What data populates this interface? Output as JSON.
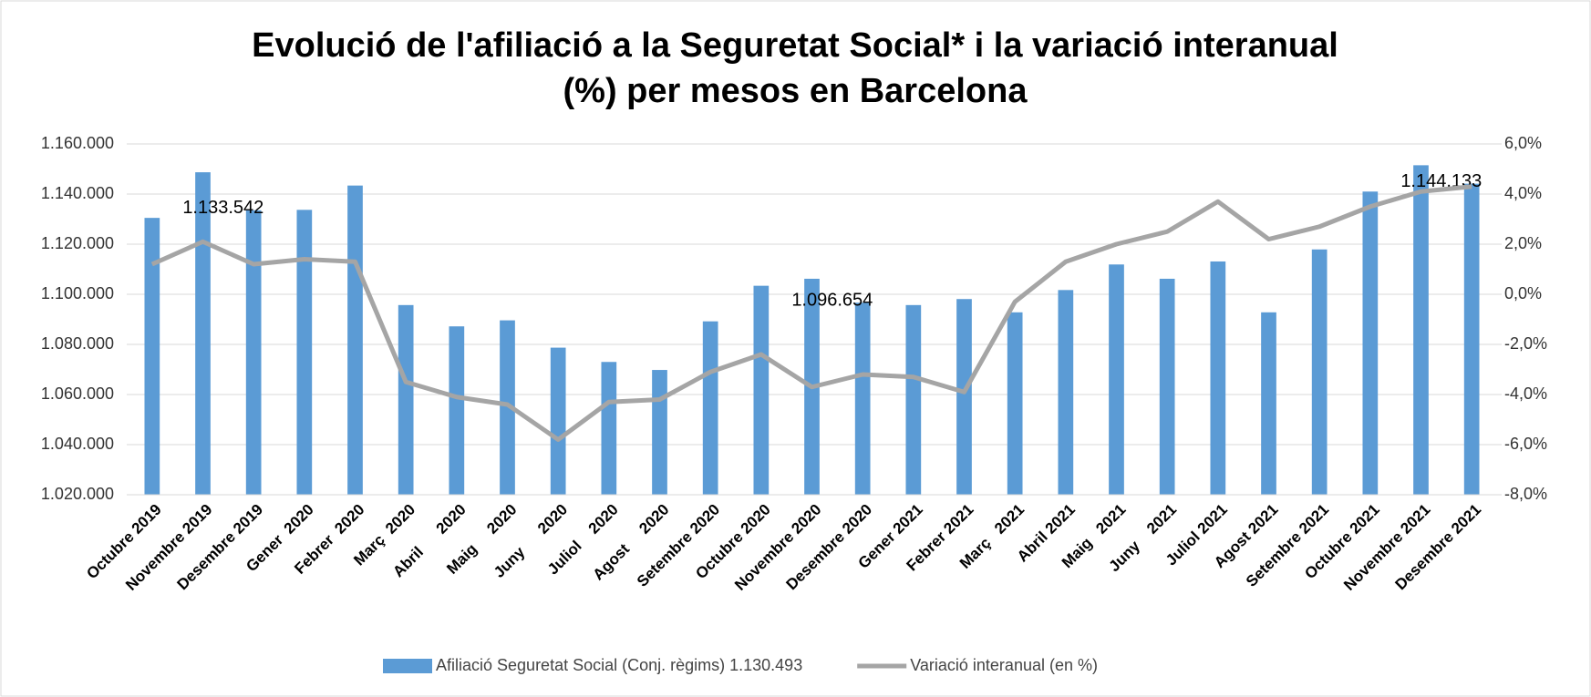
{
  "chart_data": {
    "type": "bar-line",
    "title": [
      "Evolució de l'afiliació a la Seguretat Social* i la variació interanual",
      "(%) per mesos en Barcelona"
    ],
    "categories": [
      "Octubre 2019",
      "Novembre 2019",
      "Desembre 2019",
      "Gener  2020",
      "Febrer  2020",
      "Març  2020",
      "Abril      2020",
      "Maig     2020",
      "Juny      2020",
      "Juliol    2020",
      "Agost     2020",
      "Setembre 2020",
      "Octubre 2020",
      "Novembre 2020",
      "Desembre 2020",
      "Gener 2021",
      "Febrer 2021",
      "Març   2021",
      "Abril 2021",
      "Maig   2021",
      "Juny    2021",
      "Juliol 2021",
      "Agost 2021",
      "Setembre 2021",
      "Octubre 2021",
      "Novembre 2021",
      "Desembre 2021"
    ],
    "series": [
      {
        "name": "Afiliació Seguretat Social (Conj. règims) 1.130.493",
        "type": "bar",
        "color": "#5b9bd5",
        "values": [
          1130493,
          1148700,
          1133542,
          1133700,
          1143400,
          1095700,
          1087200,
          1089600,
          1078700,
          1073000,
          1069800,
          1089200,
          1103400,
          1106200,
          1096654,
          1095700,
          1098100,
          1092800,
          1101700,
          1111900,
          1106200,
          1113100,
          1092800,
          1117900,
          1141000,
          1151500,
          1144133
        ],
        "value_labels": [
          null,
          null,
          "1.133.542",
          null,
          null,
          null,
          null,
          null,
          null,
          null,
          null,
          null,
          null,
          null,
          "1.096.654",
          null,
          null,
          null,
          null,
          null,
          null,
          null,
          null,
          null,
          null,
          null,
          "1.144.133"
        ]
      },
      {
        "name": "Variació interanual (en %)",
        "type": "line",
        "axis": "y2",
        "color": "#a5a5a5",
        "values": [
          1.2,
          2.1,
          1.2,
          1.4,
          1.3,
          -3.5,
          -4.1,
          -4.4,
          -5.8,
          -4.3,
          -4.2,
          -3.1,
          -2.4,
          -3.7,
          -3.2,
          -3.3,
          -3.9,
          -0.3,
          1.3,
          2.0,
          2.5,
          3.7,
          2.2,
          2.7,
          3.5,
          4.1,
          4.3
        ]
      }
    ],
    "ylim": [
      1020000,
      1160000
    ],
    "yticks": [
      {
        "value": 1020000,
        "label": "1.020.000"
      },
      {
        "value": 1040000,
        "label": "1.040.000"
      },
      {
        "value": 1060000,
        "label": "1.060.000"
      },
      {
        "value": 1080000,
        "label": "1.080.000"
      },
      {
        "value": 1100000,
        "label": "1.100.000"
      },
      {
        "value": 1120000,
        "label": "1.120.000"
      },
      {
        "value": 1140000,
        "label": "1.140.000"
      },
      {
        "value": 1160000,
        "label": "1.160.000"
      }
    ],
    "y2lim": [
      -8,
      6
    ],
    "y2ticks": [
      {
        "value": -8,
        "label": "-8,0%"
      },
      {
        "value": -6,
        "label": "-6,0%"
      },
      {
        "value": -4,
        "label": "-4,0%"
      },
      {
        "value": -2,
        "label": "-2,0%"
      },
      {
        "value": 0,
        "label": "0,0%"
      },
      {
        "value": 2,
        "label": "2,0%"
      },
      {
        "value": 4,
        "label": "4,0%"
      },
      {
        "value": 6,
        "label": "6,0%"
      }
    ],
    "grid": true
  }
}
